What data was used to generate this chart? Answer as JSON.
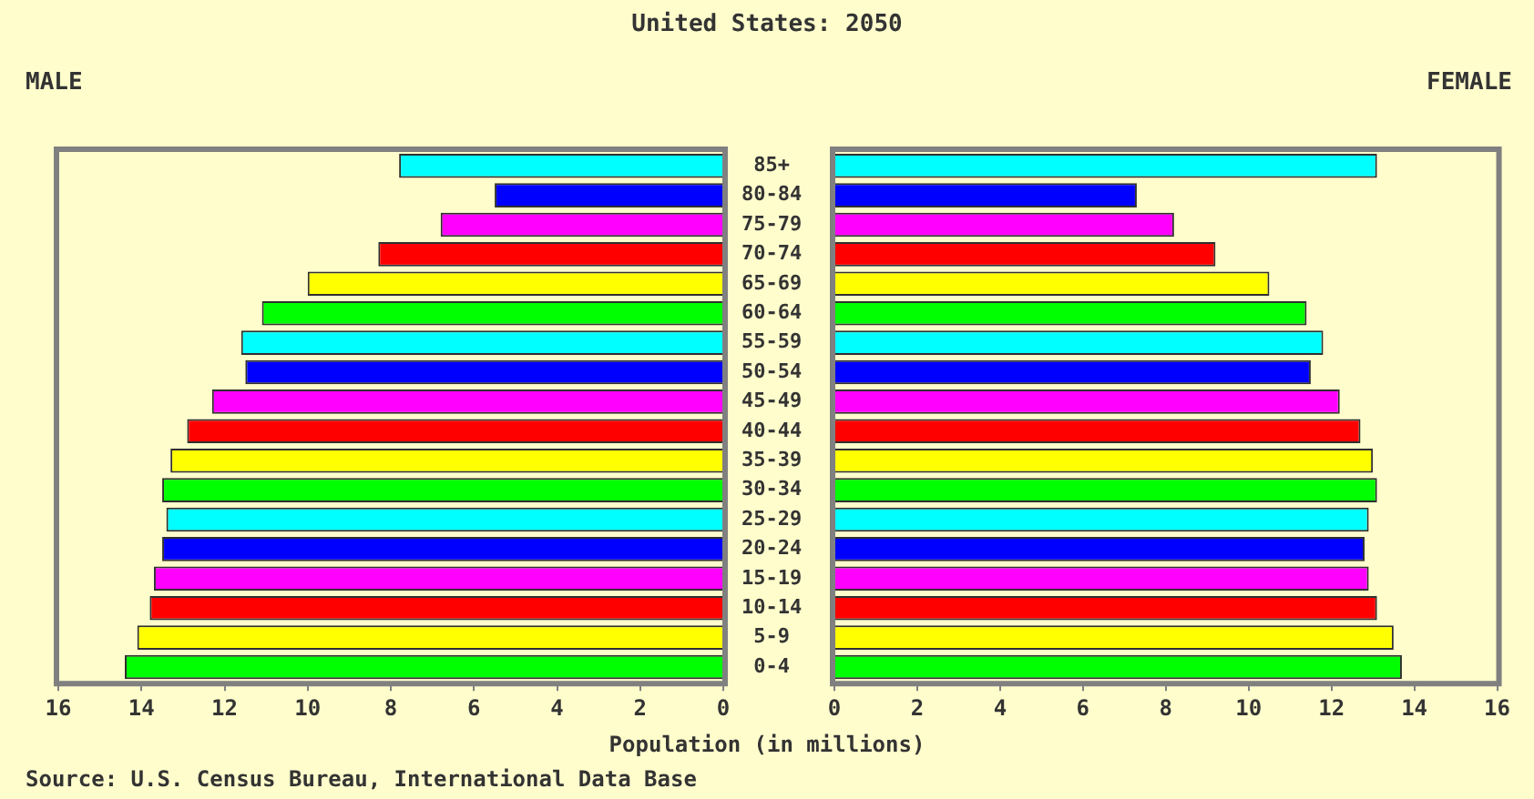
{
  "chart_data": [
    {
      "type": "bar",
      "orientation": "horizontal",
      "title": "United States: 2050",
      "subtitle": "MALE",
      "xlabel": "Population (in millions)",
      "annotations": [
        "Source: U.S. Census Bureau, International Data Base"
      ],
      "categories": [
        "85+",
        "80-84",
        "75-79",
        "70-74",
        "65-69",
        "60-64",
        "55-59",
        "50-54",
        "45-49",
        "40-44",
        "35-39",
        "30-34",
        "25-29",
        "20-24",
        "15-19",
        "10-14",
        "5-9",
        "0-4"
      ],
      "series": [
        {
          "colors": [
            "#00ffff",
            "#0000ff",
            "#ff00ff",
            "#ff0000",
            "#ffff00",
            "#00ff00",
            "#00ffff",
            "#0000ff",
            "#ff00ff",
            "#ff0000",
            "#ffff00",
            "#00ff00",
            "#00ffff",
            "#0000ff",
            "#ff00ff",
            "#ff0000",
            "#ffff00",
            "#00ff00"
          ],
          "values": [
            7.8,
            5.5,
            6.8,
            8.3,
            10.0,
            11.1,
            11.6,
            11.5,
            12.3,
            12.9,
            13.3,
            13.5,
            13.4,
            13.5,
            13.7,
            13.8,
            14.1,
            14.4
          ]
        }
      ],
      "xlim": [
        16,
        0
      ],
      "xticks": [
        16,
        14,
        12,
        10,
        8,
        6,
        4,
        2,
        0
      ]
    },
    {
      "type": "bar",
      "orientation": "horizontal",
      "title": "FEMALE",
      "tick_labels": "x",
      "categories": [
        null,
        null,
        null,
        null,
        null,
        null,
        null,
        null,
        null,
        null,
        null,
        null,
        null,
        null,
        null,
        null,
        null,
        null
      ],
      "series": [
        {
          "colors": [
            "#00ffff",
            "#0000ff",
            "#ff00ff",
            "#ff0000",
            "#ffff00",
            "#00ff00",
            "#00ffff",
            "#0000ff",
            "#ff00ff",
            "#ff0000",
            "#ffff00",
            "#00ff00",
            "#00ffff",
            "#0000ff",
            "#ff00ff",
            "#ff0000",
            "#ffff00",
            "#00ff00"
          ],
          "values": [
            13.1,
            7.3,
            8.2,
            9.2,
            10.5,
            11.4,
            11.8,
            11.5,
            12.2,
            12.7,
            13.0,
            13.1,
            12.9,
            12.8,
            12.9,
            13.1,
            13.5,
            13.7
          ]
        }
      ],
      "xlim": [
        0,
        16
      ],
      "xticks": [
        0,
        2,
        4,
        6,
        8,
        10,
        12,
        14,
        16
      ]
    }
  ]
}
